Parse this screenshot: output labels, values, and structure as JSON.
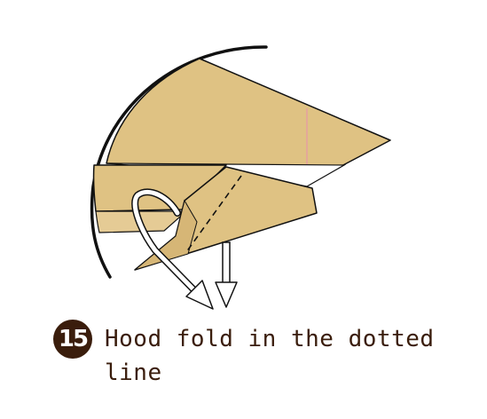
{
  "step": {
    "number": "15",
    "instruction_line_1": "Hood fold in the dotted",
    "instruction_line_2": "line"
  },
  "colors": {
    "paper": "#dfc283",
    "outline": "#111111",
    "crease": "#e5a0a0",
    "text": "#3a1d0c",
    "badge": "#3a1d0c"
  }
}
